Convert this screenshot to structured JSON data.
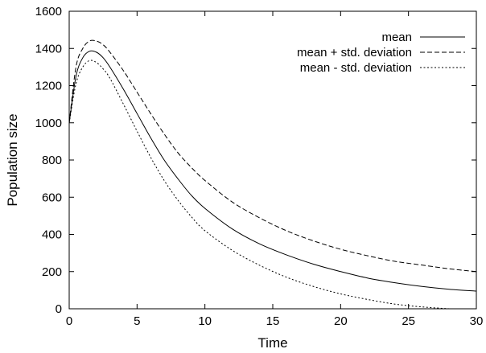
{
  "chart_data": {
    "type": "line",
    "xlabel": "Time",
    "ylabel": "Population size",
    "xlim": [
      0,
      30
    ],
    "ylim": [
      0,
      1600
    ],
    "xticks": [
      "0",
      "5",
      "10",
      "15",
      "20",
      "25",
      "30"
    ],
    "yticks": [
      "0",
      "200",
      "400",
      "600",
      "800",
      "1000",
      "1200",
      "1400",
      "1600"
    ],
    "grid": false,
    "legend_position": "top-right",
    "x": [
      0,
      0.5,
      1,
      1.5,
      2,
      2.5,
      3,
      4,
      5,
      6,
      7,
      8,
      9,
      10,
      12,
      14,
      16,
      18,
      20,
      22,
      24,
      26,
      28,
      30
    ],
    "series": [
      {
        "name": "mean",
        "dash": "solid",
        "values": [
          1000,
          1250,
          1350,
          1385,
          1380,
          1350,
          1300,
          1180,
          1050,
          920,
          800,
          700,
          610,
          540,
          430,
          350,
          290,
          240,
          200,
          165,
          140,
          120,
          105,
          95
        ]
      },
      {
        "name": "mean + std. deviation",
        "dash": "dashed",
        "values": [
          1000,
          1300,
          1400,
          1440,
          1440,
          1420,
          1380,
          1280,
          1165,
          1050,
          940,
          840,
          760,
          690,
          575,
          490,
          420,
          365,
          320,
          285,
          255,
          235,
          215,
          200
        ]
      },
      {
        "name": "mean - std. deviation",
        "dash": "dotted",
        "values": [
          1000,
          1210,
          1300,
          1335,
          1325,
          1290,
          1240,
          1100,
          955,
          815,
          690,
          585,
          495,
          420,
          315,
          235,
          170,
          120,
          80,
          50,
          25,
          10,
          0,
          -10
        ]
      }
    ]
  }
}
